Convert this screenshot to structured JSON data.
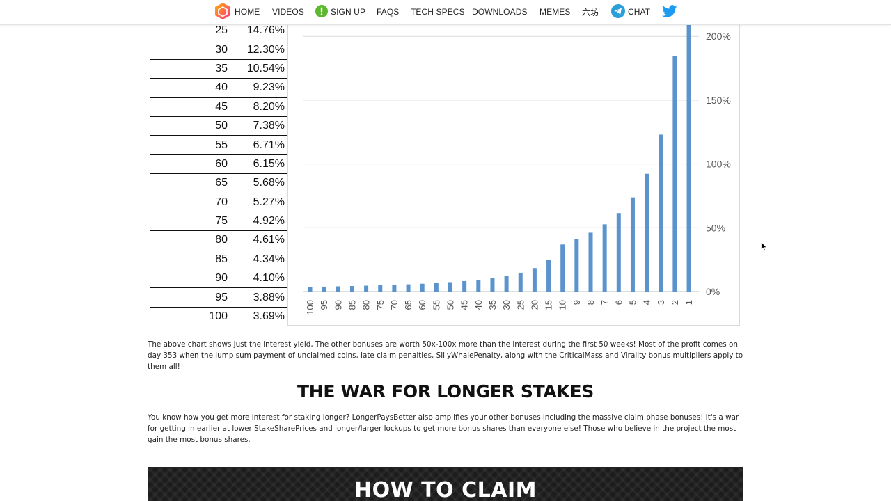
{
  "nav": {
    "items": [
      {
        "key": "home",
        "label": "HOME",
        "icon": "hex-logo-icon"
      },
      {
        "key": "videos",
        "label": "VIDEOS"
      },
      {
        "key": "signup",
        "label": "SIGN UP",
        "icon": "exclamation-circle-icon"
      },
      {
        "key": "faqs",
        "label": "FAQS"
      },
      {
        "key": "techspecs",
        "label": "TECH SPECS"
      },
      {
        "key": "downloads",
        "label": "DOWNLOADS"
      },
      {
        "key": "memes",
        "label": "MEMES"
      },
      {
        "key": "chinese",
        "label": "六坊"
      },
      {
        "key": "chat",
        "label": "CHAT",
        "icon": "telegram-icon"
      },
      {
        "key": "twitter",
        "label": "",
        "icon": "twitter-icon"
      }
    ],
    "colors": {
      "signup": "#5cb82e",
      "telegram": "#2a9fd9",
      "twitter": "#1d9bf0",
      "logo_a": "#ff3d7f",
      "logo_b": "#ffb300"
    }
  },
  "table": {
    "rows": [
      {
        "days": "25",
        "pct": "14.76%"
      },
      {
        "days": "30",
        "pct": "12.30%"
      },
      {
        "days": "35",
        "pct": "10.54%"
      },
      {
        "days": "40",
        "pct": "9.23%"
      },
      {
        "days": "45",
        "pct": "8.20%"
      },
      {
        "days": "50",
        "pct": "7.38%"
      },
      {
        "days": "55",
        "pct": "6.71%"
      },
      {
        "days": "60",
        "pct": "6.15%"
      },
      {
        "days": "65",
        "pct": "5.68%"
      },
      {
        "days": "70",
        "pct": "5.27%"
      },
      {
        "days": "75",
        "pct": "4.92%"
      },
      {
        "days": "80",
        "pct": "4.61%"
      },
      {
        "days": "85",
        "pct": "4.34%"
      },
      {
        "days": "90",
        "pct": "4.10%"
      },
      {
        "days": "95",
        "pct": "3.88%"
      },
      {
        "days": "100",
        "pct": "3.69%"
      }
    ]
  },
  "chart_data": {
    "type": "bar",
    "categories": [
      "100",
      "95",
      "90",
      "85",
      "80",
      "75",
      "70",
      "65",
      "60",
      "55",
      "50",
      "45",
      "40",
      "35",
      "30",
      "25",
      "20",
      "15",
      "10",
      "9",
      "8",
      "7",
      "6",
      "5",
      "4",
      "3",
      "2",
      "1"
    ],
    "values": [
      3.69,
      3.88,
      4.1,
      4.34,
      4.61,
      4.92,
      5.27,
      5.68,
      6.15,
      6.71,
      7.38,
      8.2,
      9.23,
      10.54,
      12.3,
      14.76,
      18.4,
      24.6,
      36.9,
      41.0,
      46.1,
      52.7,
      61.5,
      73.8,
      92.3,
      123.0,
      184.5,
      210
    ],
    "yticks": [
      "0%",
      "50%",
      "100%",
      "150%",
      "200%"
    ],
    "ylim": [
      0,
      210
    ],
    "grid": true,
    "bar_color": "#5b93cc",
    "title": "",
    "xlabel": "",
    "ylabel": ""
  },
  "content": {
    "para1": "The above chart shows just the interest yield, The other bonuses are worth 50x-100x more than the interest during the first 50 weeks! Most of the profit comes on day 353 when the lump sum payment of unclaimed coins, late claim penalties, SillyWhalePenalty, along with the CriticalMass and Virality bonus multipliers apply to them all!",
    "heading": "THE WAR FOR LONGER STAKES",
    "para2": "You know how you get more interest for staking longer? LongerPaysBetter also amplifies your other bonuses including the massive claim phase bonuses! It's a war for getting in earlier at lower StakeSharePrices and longer/larger lockups to get more bonus shares than everyone else! Those who believe in the project the most gain the most bonus shares.",
    "banner_title": "HOW TO CLAIM"
  }
}
